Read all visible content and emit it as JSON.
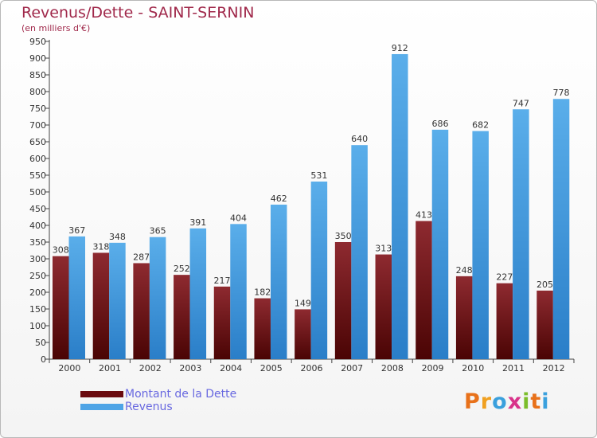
{
  "title": "Revenus/Dette - SAINT-SERNIN",
  "subtitle": "(en milliers d'€)",
  "logo_text": "Proxiti",
  "colors": {
    "dette": "#7a1418",
    "revenus": "#4ea4e6",
    "axis": "#444444",
    "grid": "#dddddd"
  },
  "chart_data": {
    "type": "bar",
    "title": "Revenus/Dette - SAINT-SERNIN",
    "ylabel": "(en milliers d'€)",
    "xlabel": "",
    "categories": [
      "2000",
      "2001",
      "2002",
      "2003",
      "2004",
      "2005",
      "2006",
      "2007",
      "2008",
      "2009",
      "2010",
      "2011",
      "2012"
    ],
    "series": [
      {
        "name": "Montant de la Dette",
        "values": [
          308,
          318,
          287,
          252,
          217,
          182,
          149,
          350,
          313,
          413,
          248,
          227,
          205
        ]
      },
      {
        "name": "Revenus",
        "values": [
          367,
          348,
          365,
          391,
          404,
          462,
          531,
          640,
          912,
          686,
          682,
          747,
          778
        ]
      }
    ],
    "ylim": [
      0,
      950
    ],
    "yticks": [
      0,
      50,
      100,
      150,
      200,
      250,
      300,
      350,
      400,
      450,
      500,
      550,
      600,
      650,
      700,
      750,
      800,
      850,
      900,
      950
    ],
    "grid": false,
    "legend": "bottom-left"
  }
}
